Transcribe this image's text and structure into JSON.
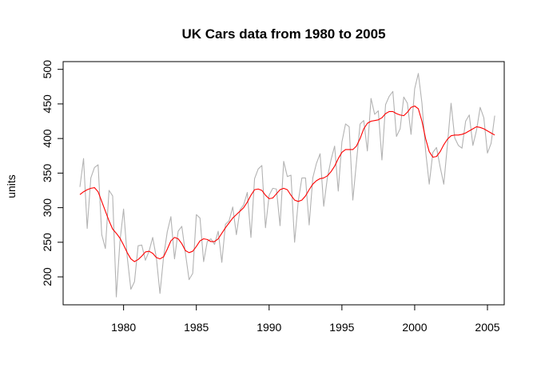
{
  "chart_data": {
    "type": "line",
    "title": "UK Cars data from 1980 to 2005",
    "xlabel": "",
    "ylabel": "units",
    "xlim": [
      1977,
      2005
    ],
    "ylim": [
      170,
      495
    ],
    "x_ticks": [
      1980,
      1985,
      1990,
      1995,
      2000,
      2005
    ],
    "y_ticks": [
      200,
      250,
      300,
      350,
      400,
      450,
      500
    ],
    "x_start": 1977,
    "x_step": 0.25,
    "grid": false,
    "legend": "none",
    "series": [
      {
        "color": "#b3b3b3",
        "values": [
          330,
          371,
          270,
          343,
          358,
          362,
          261,
          241,
          325,
          317,
          171,
          251,
          298,
          229,
          182,
          193,
          245,
          246,
          224,
          237,
          257,
          228,
          176,
          229,
          265,
          287,
          226,
          266,
          273,
          234,
          196,
          205,
          290,
          285,
          222,
          251,
          255,
          247,
          266,
          221,
          276,
          281,
          301,
          261,
          297,
          304,
          322,
          257,
          342,
          356,
          361,
          271,
          318,
          328,
          327,
          274,
          367,
          345,
          347,
          250,
          309,
          343,
          343,
          275,
          343,
          364,
          378,
          302,
          343,
          369,
          389,
          324,
          395,
          421,
          417,
          311,
          366,
          421,
          426,
          382,
          458,
          435,
          440,
          369,
          449,
          461,
          468,
          403,
          414,
          460,
          451,
          406,
          472,
          494,
          451,
          382,
          334,
          380,
          387,
          359,
          334,
          391,
          451,
          401,
          390,
          386,
          425,
          434,
          390,
          412,
          445,
          430,
          379,
          393,
          433
        ]
      },
      {
        "color": "#ff0000",
        "values": [
          319,
          323,
          326,
          328,
          329,
          323,
          309,
          295,
          281,
          269,
          263,
          256,
          246,
          235,
          226,
          222,
          225,
          230,
          236,
          237,
          234,
          228,
          226,
          229,
          240,
          252,
          257,
          255,
          248,
          238,
          235,
          237,
          244,
          252,
          255,
          254,
          251,
          251,
          255,
          263,
          271,
          278,
          285,
          290,
          295,
          300,
          308,
          318,
          326,
          327,
          325,
          318,
          313,
          314,
          320,
          326,
          328,
          326,
          318,
          311,
          309,
          311,
          317,
          326,
          334,
          339,
          342,
          343,
          346,
          352,
          360,
          371,
          380,
          384,
          384,
          384,
          389,
          400,
          414,
          422,
          425,
          426,
          427,
          430,
          436,
          439,
          439,
          436,
          434,
          433,
          438,
          445,
          447,
          443,
          425,
          400,
          381,
          373,
          374,
          381,
          391,
          399,
          404,
          405,
          405,
          406,
          408,
          411,
          414,
          417,
          416,
          414,
          411,
          408,
          405
        ]
      }
    ]
  }
}
